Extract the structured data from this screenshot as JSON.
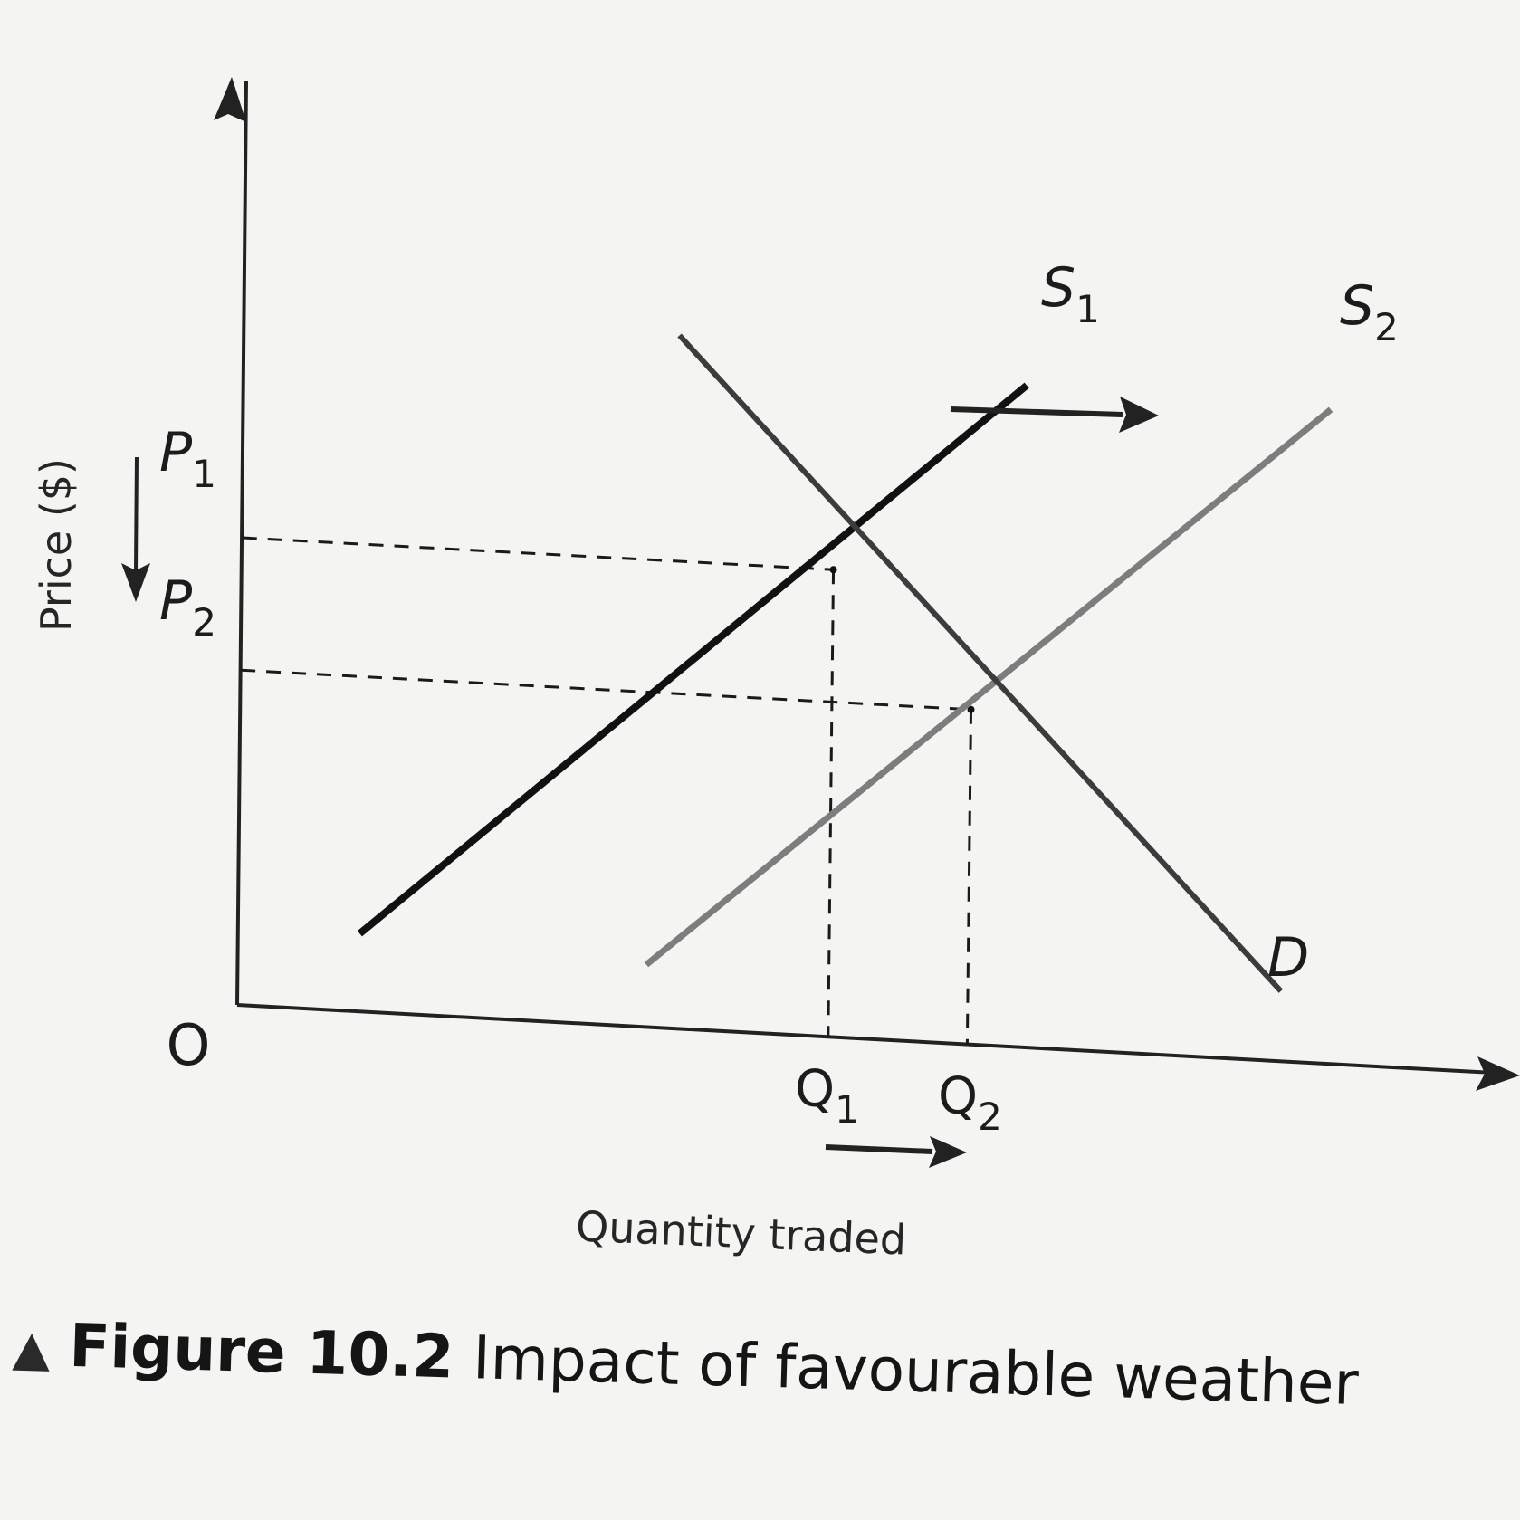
{
  "chart_data": {
    "type": "line",
    "xlabel": "Quantity traded",
    "ylabel": "Price ($)",
    "origin_label": "O",
    "series": [
      {
        "name": "S1",
        "points": [
          [
            1.4,
            1.0
          ],
          [
            9.0,
            8.5
          ]
        ]
      },
      {
        "name": "S2",
        "points": [
          [
            4.7,
            0.8
          ],
          [
            12.5,
            8.4
          ]
        ]
      },
      {
        "name": "D",
        "points": [
          [
            5.0,
            8.9
          ],
          [
            12.0,
            0.9
          ]
        ]
      }
    ],
    "price_levels": [
      {
        "label": "P1",
        "value": 6.0
      },
      {
        "label": "P2",
        "value": 4.3
      }
    ],
    "quantity_levels": [
      {
        "label": "Q1",
        "value": 6.8
      },
      {
        "label": "Q2",
        "value": 8.4
      }
    ],
    "equilibria": [
      {
        "supply": "S1",
        "quantity": 6.8,
        "price": 6.0
      },
      {
        "supply": "S2",
        "quantity": 8.4,
        "price": 4.3
      }
    ],
    "annotations": [
      "supply shifts right from S1 to S2",
      "price falls from P1 to P2",
      "quantity rises from Q1 to Q2"
    ]
  },
  "labels": {
    "S1_main": "S",
    "S1_sub": "1",
    "S2_main": "S",
    "S2_sub": "2",
    "D": "D",
    "P1_main": "P",
    "P1_sub": "1",
    "P2_main": "P",
    "P2_sub": "2",
    "Q1_main": "Q",
    "Q1_sub": "1",
    "Q2_main": "Q",
    "Q2_sub": "2"
  },
  "caption": {
    "marker": "▲",
    "figure": "Figure 10.2",
    "text": " Impact of favourable weather"
  },
  "colors": {
    "S1": "#111111",
    "S2": "#7d7d7d",
    "D": "#3c3c3c",
    "axis": "#222222"
  }
}
